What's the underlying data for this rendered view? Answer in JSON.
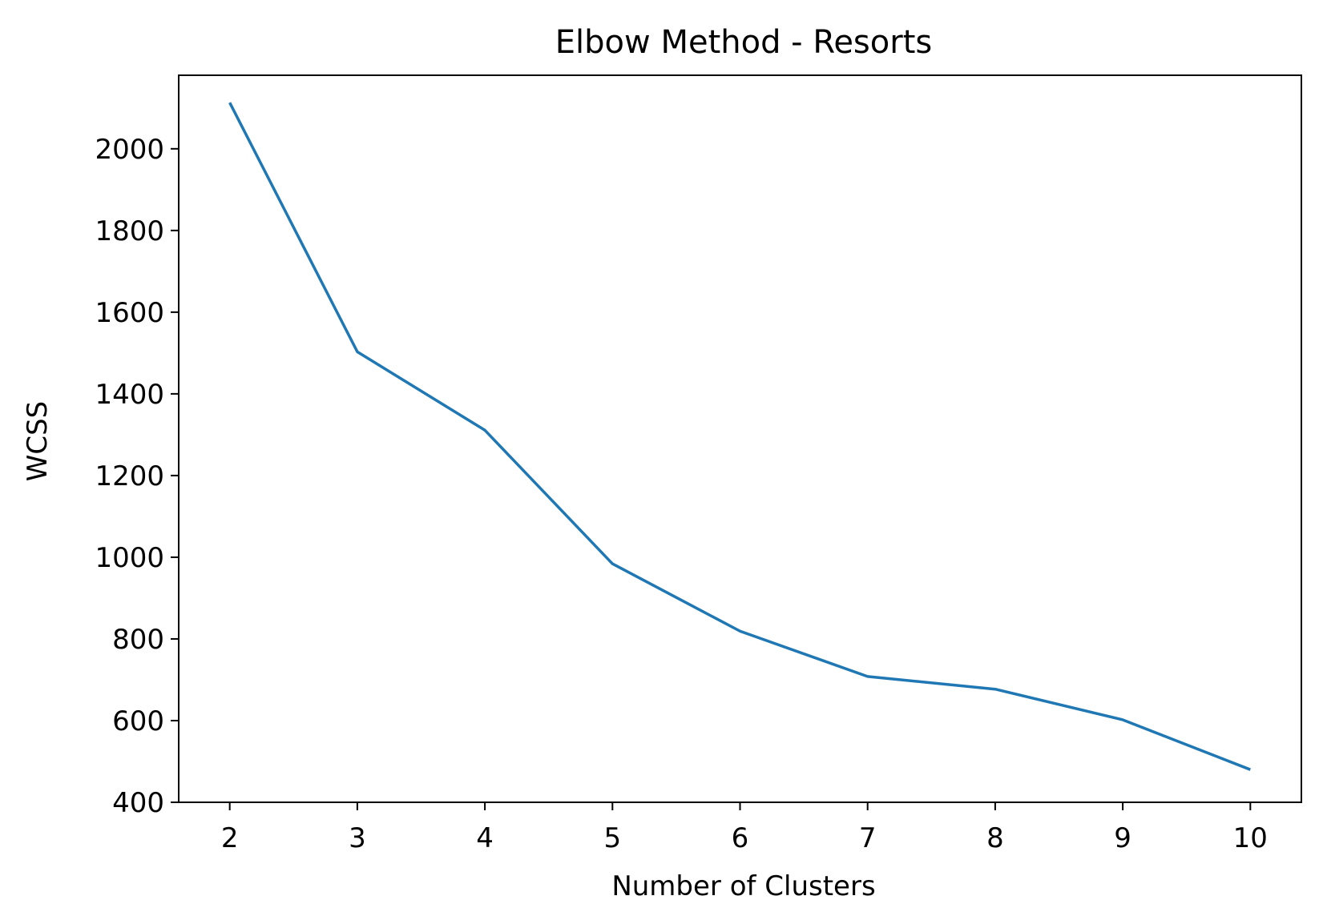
{
  "chart_data": {
    "type": "line",
    "title": "Elbow Method - Resorts",
    "xlabel": "Number of Clusters",
    "ylabel": "WCSS",
    "x": [
      2,
      3,
      4,
      5,
      6,
      7,
      8,
      9,
      10
    ],
    "series": [
      {
        "values": [
          2113,
          1503,
          1311,
          984,
          819,
          708,
          677,
          602,
          480
        ],
        "color": "#1f77b4"
      }
    ],
    "xlim": [
      1.6,
      10.4
    ],
    "ylim": [
      400,
      2180
    ],
    "xticks": [
      2,
      3,
      4,
      5,
      6,
      7,
      8,
      9,
      10
    ],
    "yticks": [
      400,
      600,
      800,
      1000,
      1200,
      1400,
      1600,
      1800,
      2000
    ],
    "grid": false,
    "legend": "none"
  }
}
